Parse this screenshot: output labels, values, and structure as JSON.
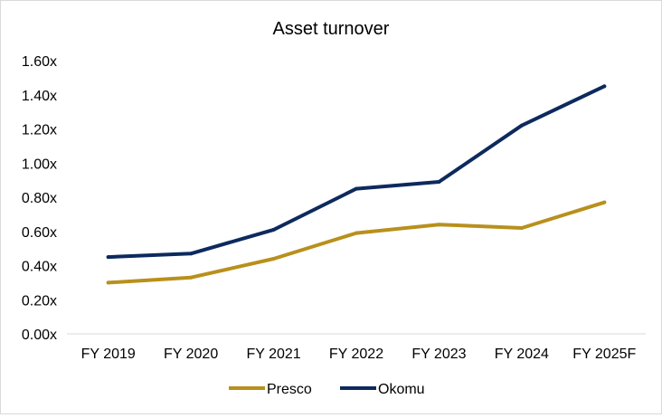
{
  "chart_data": {
    "type": "line",
    "title": "Asset turnover",
    "xlabel": "",
    "ylabel": "",
    "categories": [
      "FY 2019",
      "FY 2020",
      "FY 2021",
      "FY 2022",
      "FY 2023",
      "FY 2024",
      "FY 2025F"
    ],
    "ylim": [
      0,
      1.6
    ],
    "yticks": [
      "0.00x",
      "0.20x",
      "0.40x",
      "0.60x",
      "0.80x",
      "1.00x",
      "1.20x",
      "1.40x",
      "1.60x"
    ],
    "grid": false,
    "legend_position": "bottom",
    "series": [
      {
        "name": "Presco",
        "color": "#b8901c",
        "values": [
          0.3,
          0.33,
          0.44,
          0.59,
          0.64,
          0.62,
          0.77
        ]
      },
      {
        "name": "Okomu",
        "color": "#0d2a5e",
        "values": [
          0.45,
          0.47,
          0.61,
          0.85,
          0.89,
          1.22,
          1.45
        ]
      }
    ]
  }
}
